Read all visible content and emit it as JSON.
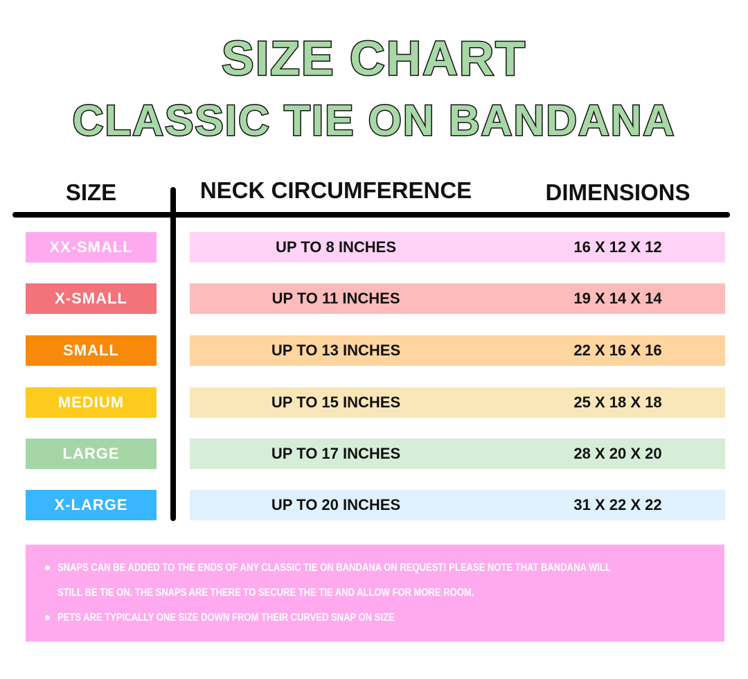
{
  "title": "SIZE CHART",
  "subtitle": "CLASSIC TIE ON BANDANA",
  "headers": {
    "size": "SIZE",
    "neck": "NECK CIRCUMFERENCE",
    "dimensions": "DIMENSIONS"
  },
  "rows": [
    {
      "size": "XX-SMALL",
      "neck": "UP TO 8 INCHES",
      "dimensions": "16 X 12 X 12",
      "color": "#ffaaee",
      "row_color": "#ffd3f5"
    },
    {
      "size": "X-SMALL",
      "neck": "UP TO 11 INCHES",
      "dimensions": "19 X 14 X 14",
      "color": "#f2737a",
      "row_color": "#fdbbbb"
    },
    {
      "size": "SMALL",
      "neck": "UP TO 13 INCHES",
      "dimensions": "22 X 16 X 16",
      "color": "#f78a0b",
      "row_color": "#fed59e"
    },
    {
      "size": "MEDIUM",
      "neck": "UP TO 15 INCHES",
      "dimensions": "25 X 18 X 18",
      "color": "#fdcb1d",
      "row_color": "#f9e6b9"
    },
    {
      "size": "LARGE",
      "neck": "UP TO 17 INCHES",
      "dimensions": "28 X 20 X 20",
      "color": "#a6d6a6",
      "row_color": "#d6eed7"
    },
    {
      "size": "X-LARGE",
      "neck": "UP TO 20 INCHES",
      "dimensions": "31 X 22 X 22",
      "color": "#38b6ff",
      "row_color": "#def1fd"
    }
  ],
  "notes": [
    {
      "line1": "SNAPS CAN BE ADDED TO THE ENDS OF ANY CLASSIC TIE ON BANDANA ON REQUEST! PLEASE NOTE THAT BANDANA WILL",
      "line2": "STILL BE TIE ON. THE SNAPS ARE THERE TO SECURE THE TIE AND ALLOW FOR MORE ROOM."
    },
    {
      "line1": "PETS ARE TYPICALLY ONE SIZE DOWN FROM THEIR CURVED SNAP ON SIZE"
    }
  ],
  "colors": {
    "title_green": "#a8d8a6",
    "notes_bg": "#ffaaee"
  }
}
